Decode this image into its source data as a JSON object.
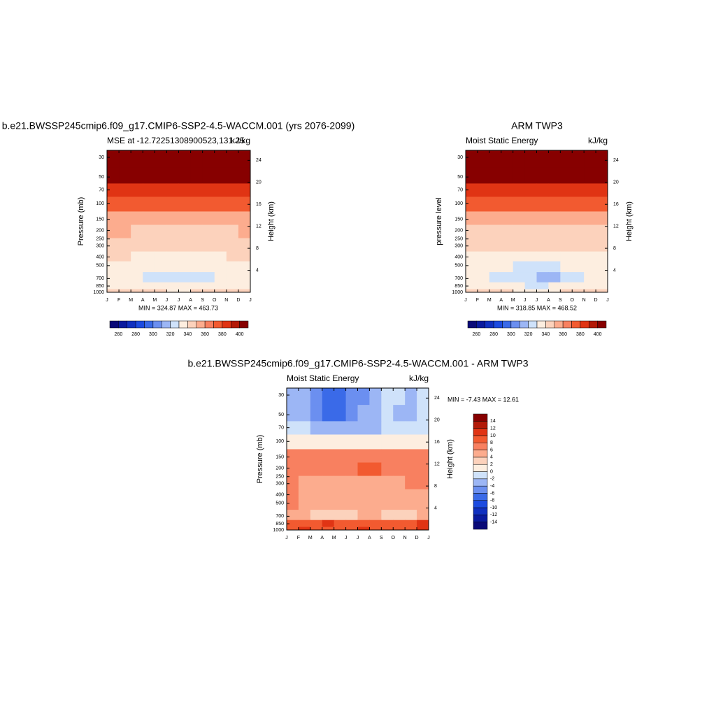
{
  "chart_data": [
    {
      "type": "contour",
      "title": "b.e21.BWSSP245cmip6.f09_g17.CMIP6-SSP2-4.5-WACCM.001 (yrs 2076-2099)",
      "subtitle_left": "MSE at -12.72251308900523,131.25",
      "subtitle_right": "kJ/kg",
      "ylabel": "Pressure (mb)",
      "y2label": "Height (km)",
      "stats": "MIN = 324.87 MAX = 463.73",
      "x": [
        "J",
        "F",
        "M",
        "A",
        "M",
        "J",
        "J",
        "A",
        "S",
        "O",
        "N",
        "D",
        "J"
      ],
      "pressure_levels": [
        30,
        50,
        70,
        100,
        150,
        200,
        300,
        400,
        500,
        700,
        850,
        1000
      ],
      "values": [
        [
          440,
          440,
          440,
          440,
          440,
          440,
          440,
          440,
          440,
          440,
          440,
          440
        ],
        [
          402,
          402,
          402,
          402,
          402,
          402,
          402,
          402,
          402,
          402,
          402,
          402
        ],
        [
          385,
          385,
          385,
          385,
          385,
          385,
          385,
          385,
          385,
          385,
          385,
          385
        ],
        [
          370,
          370,
          370,
          370,
          370,
          370,
          370,
          370,
          370,
          370,
          370,
          370
        ],
        [
          355,
          355,
          355,
          355,
          355,
          355,
          355,
          355,
          355,
          355,
          355,
          355
        ],
        [
          351,
          350,
          348,
          347,
          347,
          348,
          349,
          349,
          348,
          348,
          349,
          351
        ],
        [
          342,
          342,
          342,
          342,
          342,
          342,
          342,
          342,
          342,
          342,
          342,
          342
        ],
        [
          341,
          340,
          338,
          336,
          335,
          335,
          335,
          336,
          337,
          338,
          340,
          341
        ],
        [
          336,
          336,
          334,
          332,
          331,
          331,
          331,
          332,
          333,
          334,
          336,
          336
        ],
        [
          334,
          333,
          331,
          328,
          327,
          326,
          327,
          327,
          328,
          331,
          333,
          334
        ],
        [
          338,
          337,
          335,
          333,
          332,
          331,
          331,
          332,
          333,
          335,
          337,
          338
        ],
        [
          346,
          345,
          343,
          341,
          340,
          339,
          339,
          340,
          341,
          343,
          345,
          346
        ]
      ],
      "ylim": [
        1000,
        25
      ],
      "yticks": [
        30,
        50,
        70,
        100,
        150,
        200,
        250,
        300,
        400,
        500,
        700,
        850,
        1000
      ],
      "y2ticks": [
        4,
        8,
        12,
        16,
        20,
        24
      ],
      "colorbar_levels": [
        260,
        270,
        280,
        290,
        300,
        310,
        320,
        330,
        340,
        350,
        360,
        370,
        380,
        390,
        400
      ],
      "colorbar_ticks": [
        260,
        280,
        300,
        320,
        340,
        360,
        380,
        400
      ],
      "colors": [
        "#0a0a78",
        "#0a1a9e",
        "#1030c0",
        "#1c4be0",
        "#3a6ae8",
        "#6b8ff0",
        "#9cb6f5",
        "#cfe2fa",
        "#fdeee0",
        "#fcd2bc",
        "#fcac8e",
        "#f88060",
        "#f25a30",
        "#e03414",
        "#b31a08",
        "#870000"
      ]
    },
    {
      "type": "contour",
      "title": "ARM TWP3",
      "subtitle_left": "Moist Static Energy",
      "subtitle_right": "kJ/kg",
      "ylabel": "pressure level",
      "y2label": "Height (km)",
      "stats": "MIN = 318.85 MAX = 468.52",
      "x": [
        "J",
        "F",
        "M",
        "A",
        "M",
        "J",
        "J",
        "A",
        "S",
        "O",
        "N",
        "D",
        "J"
      ],
      "pressure_levels": [
        30,
        50,
        70,
        100,
        150,
        200,
        300,
        400,
        500,
        700,
        850,
        1000
      ],
      "values": [
        [
          440,
          440,
          440,
          440,
          440,
          440,
          440,
          440,
          440,
          440,
          440,
          440
        ],
        [
          401,
          401,
          401,
          401,
          401,
          401,
          401,
          401,
          401,
          401,
          401,
          401
        ],
        [
          386,
          386,
          386,
          386,
          386,
          386,
          386,
          386,
          386,
          386,
          386,
          386
        ],
        [
          372,
          372,
          372,
          372,
          372,
          372,
          372,
          372,
          372,
          372,
          372,
          372
        ],
        [
          352,
          352,
          351,
          351,
          351,
          351,
          351,
          351,
          351,
          351,
          352,
          352
        ],
        [
          346,
          346,
          346,
          346,
          346,
          346,
          346,
          346,
          346,
          346,
          346,
          346
        ],
        [
          341,
          341,
          340,
          340,
          340,
          340,
          340,
          340,
          340,
          340,
          341,
          341
        ],
        [
          337,
          336,
          335,
          334,
          333,
          333,
          333,
          333,
          334,
          335,
          336,
          337
        ],
        [
          334,
          333,
          331,
          330,
          329,
          329,
          329,
          329,
          330,
          331,
          333,
          334
        ],
        [
          333,
          331,
          329,
          327,
          326,
          325,
          319,
          319,
          326,
          329,
          331,
          333
        ],
        [
          336,
          335,
          333,
          331,
          330,
          329,
          329,
          330,
          331,
          333,
          335,
          336
        ],
        [
          344,
          343,
          341,
          340,
          339,
          338,
          338,
          339,
          340,
          341,
          343,
          344
        ]
      ],
      "ylim": [
        1000,
        25
      ],
      "yticks": [
        30,
        50,
        70,
        100,
        150,
        200,
        250,
        300,
        400,
        500,
        700,
        850,
        1000
      ],
      "y2ticks": [
        4,
        8,
        12,
        16,
        20,
        24
      ],
      "colorbar_levels": [
        260,
        270,
        280,
        290,
        300,
        310,
        320,
        330,
        340,
        350,
        360,
        370,
        380,
        390,
        400
      ],
      "colorbar_ticks": [
        260,
        280,
        300,
        320,
        340,
        360,
        380,
        400
      ],
      "colors": [
        "#0a0a78",
        "#0a1a9e",
        "#1030c0",
        "#1c4be0",
        "#3a6ae8",
        "#6b8ff0",
        "#9cb6f5",
        "#cfe2fa",
        "#fdeee0",
        "#fcd2bc",
        "#fcac8e",
        "#f88060",
        "#f25a30",
        "#e03414",
        "#b31a08",
        "#870000"
      ]
    },
    {
      "type": "contour",
      "title": "b.e21.BWSSP245cmip6.f09_g17.CMIP6-SSP2-4.5-WACCM.001 - ARM TWP3",
      "subtitle_left": "Moist Static Energy",
      "subtitle_right": "kJ/kg",
      "ylabel": "Pressure (mb)",
      "y2label": "Height (km)",
      "stats": "MIN =  -7.43 MAX =  12.61",
      "x": [
        "J",
        "F",
        "M",
        "A",
        "M",
        "J",
        "J",
        "A",
        "S",
        "O",
        "N",
        "D",
        "J"
      ],
      "pressure_levels": [
        30,
        50,
        70,
        100,
        150,
        200,
        300,
        400,
        500,
        700,
        850,
        1000
      ],
      "values": [
        [
          -3,
          -3,
          -5,
          -7,
          -7,
          -6,
          -5,
          -3,
          -2,
          -1,
          -3,
          -2
        ],
        [
          -3,
          -4,
          -5,
          -7,
          -7,
          -6,
          -4,
          -3,
          -2,
          -3,
          -3,
          -2
        ],
        [
          -2,
          -2,
          -3,
          -4,
          -4,
          -4,
          -3,
          -3,
          -2,
          -2,
          -2,
          -2
        ],
        [
          1,
          1,
          1,
          1,
          1,
          1,
          1,
          1,
          1,
          1,
          1,
          1
        ],
        [
          7,
          7,
          7,
          7,
          7,
          7,
          7,
          7,
          7,
          7,
          7,
          7
        ],
        [
          7,
          7,
          7,
          7,
          7,
          7,
          8,
          9,
          7,
          7,
          7,
          7
        ],
        [
          6,
          5,
          5,
          5,
          5,
          5,
          5,
          5,
          5,
          5,
          6,
          6
        ],
        [
          6,
          5,
          5,
          5,
          5,
          5,
          5,
          4,
          4,
          5,
          5,
          5
        ],
        [
          6,
          5,
          5,
          5,
          4,
          4,
          5,
          4,
          4,
          5,
          5,
          5
        ],
        [
          4,
          4,
          3,
          3,
          3,
          3,
          4,
          5,
          3,
          3,
          3,
          4
        ],
        [
          9,
          9,
          9,
          11,
          9,
          9,
          9,
          9,
          8,
          8,
          9,
          11
        ],
        [
          9,
          10,
          9,
          9,
          9,
          9,
          10,
          9,
          8,
          8,
          9,
          10
        ]
      ],
      "ylim": [
        1000,
        25
      ],
      "yticks": [
        30,
        50,
        70,
        100,
        150,
        200,
        250,
        300,
        400,
        500,
        700,
        850,
        1000
      ],
      "y2ticks": [
        4,
        8,
        12,
        16,
        20,
        24
      ],
      "colorbar_levels": [
        -14,
        -12,
        -10,
        -8,
        -6,
        -4,
        -2,
        0,
        2,
        4,
        6,
        8,
        10,
        12,
        14
      ],
      "colorbar_ticks": [
        -14,
        -12,
        -10,
        -8,
        -6,
        -4,
        -2,
        0,
        2,
        4,
        6,
        8,
        10,
        12,
        14
      ],
      "colors": [
        "#0a0a78",
        "#0a1a9e",
        "#1030c0",
        "#1c4be0",
        "#3a6ae8",
        "#6b8ff0",
        "#9cb6f5",
        "#cfe2fa",
        "#fdeee0",
        "#fcd2bc",
        "#fcac8e",
        "#f88060",
        "#f25a30",
        "#e03414",
        "#b31a08",
        "#870000"
      ]
    }
  ]
}
